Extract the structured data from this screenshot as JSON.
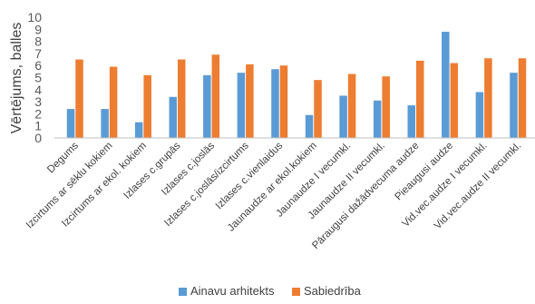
{
  "chart_data": {
    "type": "bar",
    "ylabel": "Vērtējums, balles",
    "ylim": [
      0,
      10
    ],
    "yticks": [
      0,
      1,
      2,
      3,
      4,
      5,
      6,
      7,
      8,
      9,
      10
    ],
    "grid": false,
    "legend_position": "bottom",
    "categories": [
      "Degums",
      "Izcirtums ar sēklu kokiem",
      "Izcirtums ar ekol. kokiem",
      "Izlases c.grupās",
      "Izlases c.joslās",
      "Izlases c.joslās/izcirtums",
      "Izlases c.vienlaidus",
      "Jaunaudze ar ekol.kokiem",
      "Jaunaudze I vecumkl.",
      "Jaunaudze II vecumkl.",
      "Pāraugusi dažādvecuma audze",
      "Pieaugusi audze",
      "Vid.vec.audze I vecumkl.",
      "Vid.vec.audze II vecumkl."
    ],
    "series": [
      {
        "name": "Ainavu arhitekts",
        "color": "#5B9BD5",
        "values": [
          2.4,
          2.4,
          1.3,
          3.4,
          5.2,
          5.4,
          5.7,
          1.9,
          3.5,
          3.1,
          2.7,
          8.8,
          3.8,
          5.4
        ]
      },
      {
        "name": "Sabiedrība",
        "color": "#ED7D31",
        "values": [
          6.5,
          5.9,
          5.2,
          6.5,
          6.9,
          6.1,
          6.0,
          4.8,
          5.3,
          5.1,
          6.4,
          6.2,
          6.6,
          6.6
        ]
      }
    ]
  }
}
